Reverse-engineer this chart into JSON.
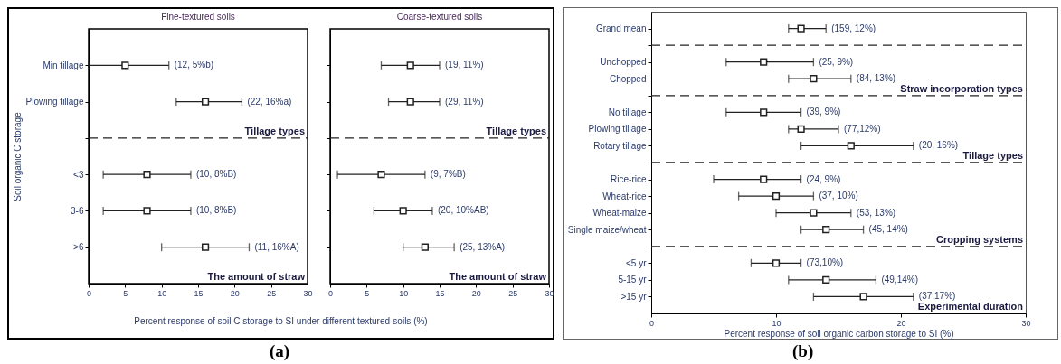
{
  "chart_data": [
    {
      "type": "scatter",
      "orientation": "horizontal",
      "marker": "square",
      "color": "#222222",
      "title": "Fine-textured soils",
      "xlabel": "Percent response of soil C storage to SI under different textured-soils (%)",
      "ylabel": "Soil organic C storage",
      "subtitle": "(a)",
      "categories": [
        "Min tillage",
        "Plowing tillage",
        null,
        "<3",
        "3-6",
        ">6"
      ],
      "values": [
        5,
        16,
        null,
        8,
        8,
        16
      ],
      "errors": [
        [
          0,
          11
        ],
        [
          12,
          21
        ],
        null,
        [
          2,
          14
        ],
        [
          2,
          14
        ],
        [
          10,
          22
        ]
      ],
      "annotations": [
        "(12, 5%b)",
        "(22, 16%a)",
        "(10, 8%B)",
        "(10, 8%B)",
        "(11, 16%A)",
        "Tillage types",
        "The amount of straw"
      ],
      "xlim": [
        0,
        30
      ],
      "xticks": [
        0,
        5,
        10,
        15,
        20,
        25,
        30
      ]
    },
    {
      "type": "scatter",
      "orientation": "horizontal",
      "marker": "square",
      "color": "#222222",
      "title": "Coarse-textured soils",
      "tick_labels": "x",
      "categories": [
        null,
        null,
        null,
        null,
        null,
        null
      ],
      "values": [
        11,
        11,
        null,
        7,
        10,
        13
      ],
      "errors": [
        [
          7,
          15
        ],
        [
          8,
          15
        ],
        null,
        [
          1,
          13
        ],
        [
          6,
          14
        ],
        [
          10,
          17
        ]
      ],
      "annotations": [
        "(19, 11%)",
        "(29, 11%)",
        "(9, 7%B)",
        "(20, 10%AB)",
        "(25, 13%A)",
        "Tillage types",
        "The amount of straw"
      ],
      "xlim": [
        0,
        30
      ],
      "xticks": [
        0,
        5,
        10,
        15,
        20,
        25,
        30
      ]
    },
    {
      "type": "scatter",
      "orientation": "horizontal",
      "marker": "square",
      "color": "#222222",
      "xlabel": "Percent response of soil organic carbon storage to SI (%)",
      "subtitle": "(b)",
      "categories": [
        "Grand mean",
        null,
        "Unchopped",
        "Chopped",
        null,
        "No tillage",
        "Plowing tillage",
        "Rotary tillage",
        null,
        "Rice-rice",
        "Wheat-rice",
        "Wheat-maize",
        "Single maize/wheat",
        null,
        "<5 yr",
        "5-15 yr",
        ">15 yr"
      ],
      "values": [
        12,
        null,
        9,
        13,
        null,
        9,
        12,
        16,
        null,
        9,
        10,
        13,
        14,
        null,
        10,
        14,
        17
      ],
      "errors": [
        [
          11,
          14
        ],
        null,
        [
          6,
          13
        ],
        [
          11,
          16
        ],
        null,
        [
          6,
          12
        ],
        [
          11,
          15
        ],
        [
          12,
          21
        ],
        null,
        [
          5,
          12
        ],
        [
          7,
          13
        ],
        [
          10,
          16
        ],
        [
          12,
          17
        ],
        null,
        [
          8,
          12
        ],
        [
          11,
          18
        ],
        [
          13,
          21
        ]
      ],
      "annotations": [
        "(159, 12%)",
        "(25, 9%)",
        "(84, 13%)",
        "(39, 9%)",
        "(77,12%)",
        "(20, 16%)",
        "(24, 9%)",
        "(37, 10%)",
        "(53, 13%)",
        "(45, 14%)",
        "(73,10%)",
        "(49,14%)",
        "(37,17%)",
        "Straw incorporation types",
        "Tillage types",
        "Cropping systems",
        "Experimental duration"
      ],
      "xlim": [
        0,
        30
      ],
      "xticks": [
        0,
        10,
        20,
        30
      ]
    }
  ]
}
